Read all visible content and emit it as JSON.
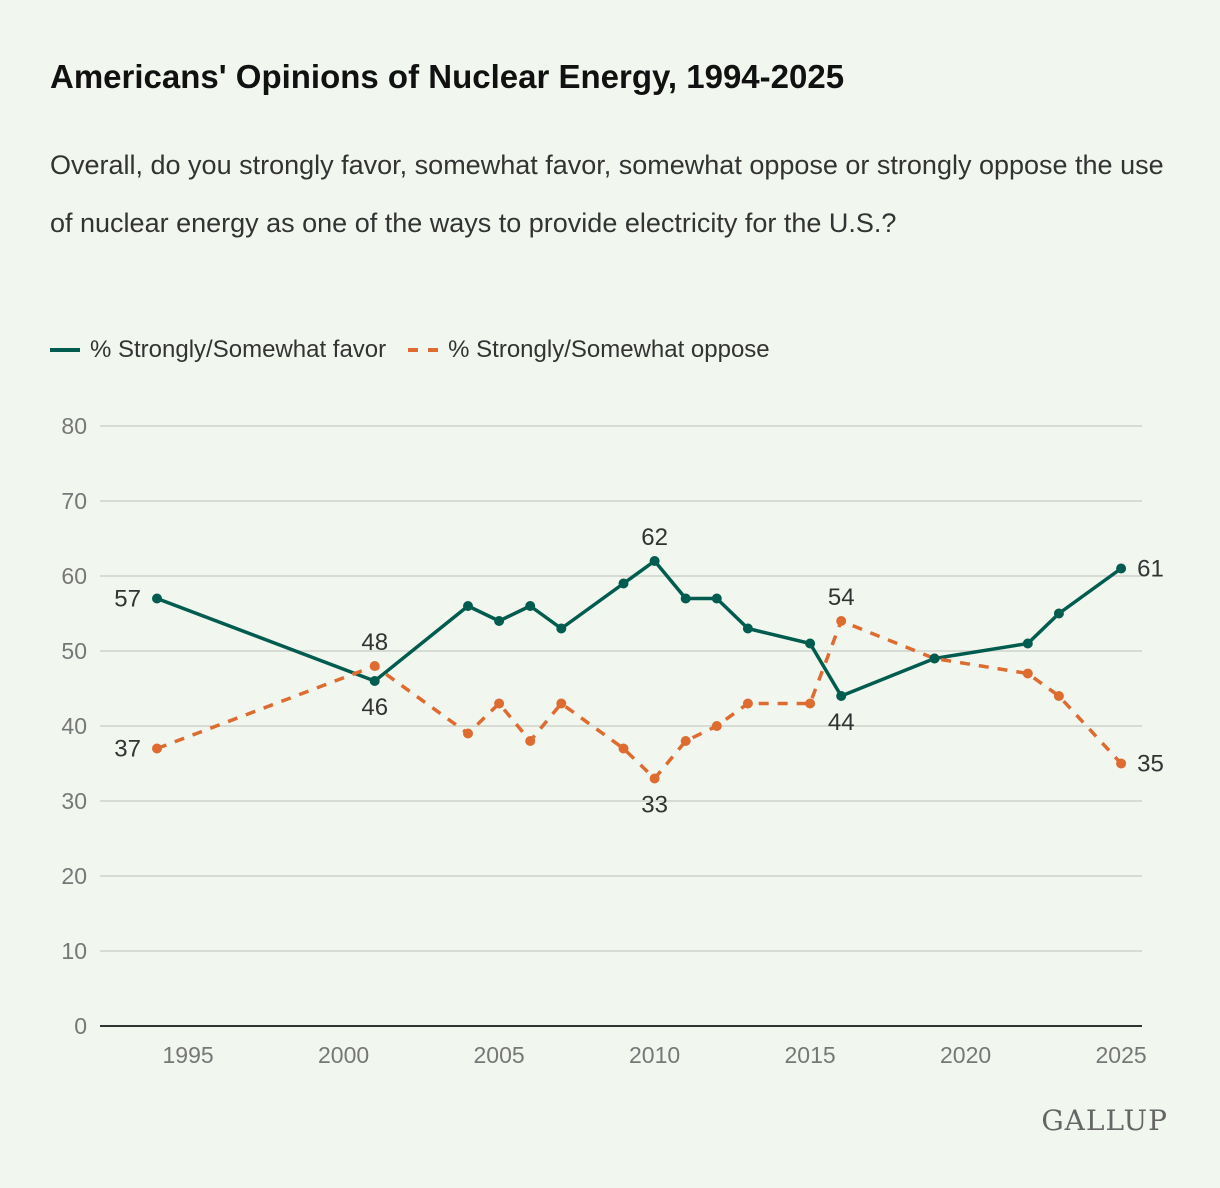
{
  "title": "Americans' Opinions of Nuclear Energy, 1994-2025",
  "subtitle": "Overall, do you strongly favor, somewhat favor, somewhat oppose or strongly oppose the use of nuclear energy as one of the ways to provide electricity for the U.S.?",
  "logo": "GALLUP",
  "chart_data": {
    "type": "line",
    "title": "Americans' Opinions of Nuclear Energy, 1994-2025",
    "xlabel": "",
    "ylabel": "",
    "ylim": [
      0,
      80
    ],
    "xlim": [
      1994,
      2025
    ],
    "yticks": [
      0,
      10,
      20,
      30,
      40,
      50,
      60,
      70,
      80
    ],
    "xticks": [
      1995,
      2000,
      2005,
      2010,
      2015,
      2020,
      2025
    ],
    "grid": true,
    "legend_position": "top-left",
    "x": [
      1994,
      2001,
      2004,
      2005,
      2006,
      2007,
      2009,
      2010,
      2011,
      2012,
      2013,
      2015,
      2016,
      2019,
      2022,
      2023,
      2025
    ],
    "series": [
      {
        "name": "% Strongly/Somewhat favor",
        "color": "#005c4e",
        "style": "solid",
        "values": [
          57,
          46,
          56,
          54,
          56,
          53,
          59,
          62,
          57,
          57,
          53,
          51,
          44,
          49,
          51,
          55,
          61
        ]
      },
      {
        "name": "% Strongly/Somewhat oppose",
        "color": "#de6b30",
        "style": "dashed",
        "values": [
          37,
          48,
          39,
          43,
          38,
          43,
          37,
          33,
          38,
          40,
          43,
          43,
          54,
          49,
          47,
          44,
          35
        ]
      }
    ],
    "data_labels": [
      {
        "series": 0,
        "year": 1994,
        "text": "57",
        "side": "left"
      },
      {
        "series": 1,
        "year": 1994,
        "text": "37",
        "side": "left"
      },
      {
        "series": 1,
        "year": 2001,
        "text": "48",
        "side": "above"
      },
      {
        "series": 0,
        "year": 2001,
        "text": "46",
        "side": "below"
      },
      {
        "series": 0,
        "year": 2010,
        "text": "62",
        "side": "above"
      },
      {
        "series": 1,
        "year": 2010,
        "text": "33",
        "side": "below"
      },
      {
        "series": 1,
        "year": 2016,
        "text": "54",
        "side": "above"
      },
      {
        "series": 0,
        "year": 2016,
        "text": "44",
        "side": "below"
      },
      {
        "series": 0,
        "year": 2025,
        "text": "61",
        "side": "right"
      },
      {
        "series": 1,
        "year": 2025,
        "text": "35",
        "side": "right"
      }
    ]
  }
}
